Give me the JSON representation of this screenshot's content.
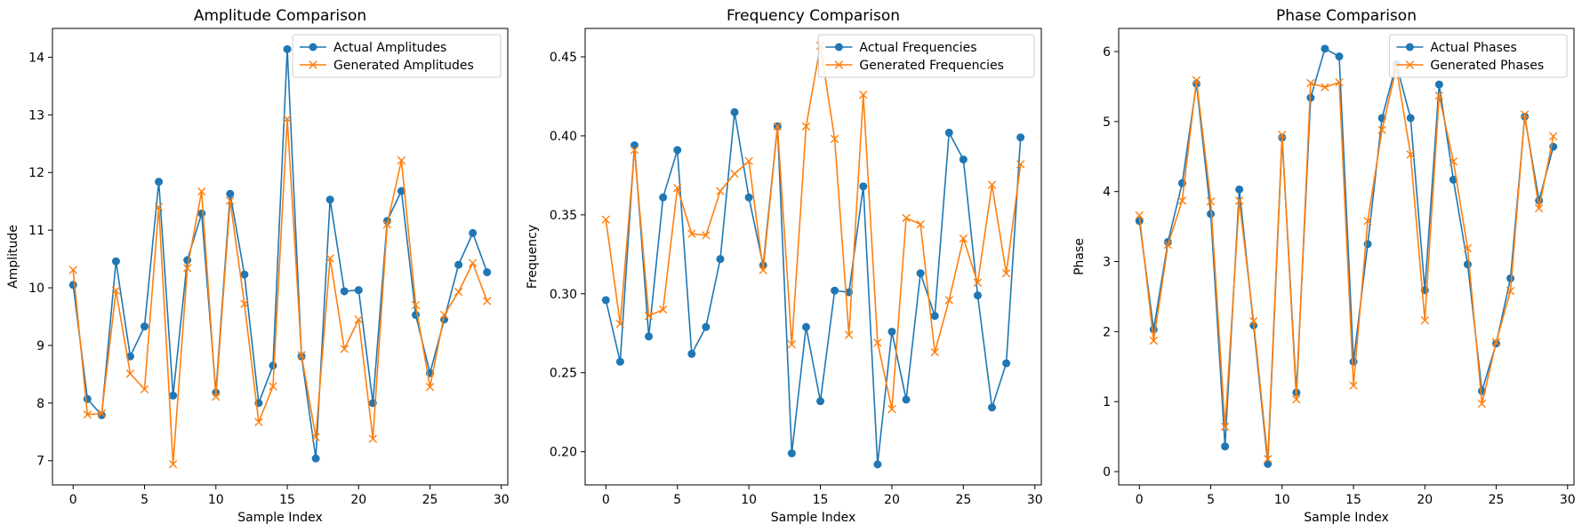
{
  "chart_data": [
    {
      "type": "line",
      "title": "Amplitude Comparison",
      "xlabel": "Sample Index",
      "ylabel": "Amplitude",
      "xlim": [
        -1.45,
        30.45
      ],
      "ylim": [
        6.58,
        14.5
      ],
      "xticks": [
        0,
        5,
        10,
        15,
        20,
        25,
        30
      ],
      "yticks": [
        7,
        8,
        9,
        10,
        11,
        12,
        13,
        14
      ],
      "grid": false,
      "legend": "top-right",
      "x": [
        0,
        1,
        2,
        3,
        4,
        5,
        6,
        7,
        8,
        9,
        10,
        11,
        12,
        13,
        14,
        15,
        16,
        17,
        18,
        19,
        20,
        21,
        22,
        23,
        24,
        25,
        26,
        27,
        28,
        29
      ],
      "series": [
        {
          "name": "Actual Amplitudes",
          "color": "#1f77b4",
          "marker": "circle",
          "values": [
            10.05,
            8.07,
            7.79,
            10.46,
            8.81,
            9.33,
            11.84,
            8.13,
            10.48,
            11.29,
            8.18,
            11.63,
            10.23,
            8.0,
            8.65,
            14.14,
            8.81,
            7.04,
            11.53,
            9.94,
            9.96,
            8.0,
            11.16,
            11.68,
            9.53,
            8.52,
            9.45,
            10.4,
            10.95,
            10.27
          ]
        },
        {
          "name": "Generated Amplitudes",
          "color": "#ff7f0e",
          "marker": "x",
          "values": [
            10.31,
            7.8,
            7.82,
            9.95,
            8.51,
            8.24,
            11.4,
            6.94,
            10.34,
            11.67,
            8.11,
            11.51,
            9.72,
            7.67,
            8.29,
            12.93,
            8.83,
            7.41,
            10.51,
            8.94,
            9.45,
            7.38,
            11.1,
            12.21,
            9.7,
            8.28,
            9.53,
            9.93,
            10.43,
            9.77
          ]
        }
      ]
    },
    {
      "type": "line",
      "title": "Frequency Comparison",
      "xlabel": "Sample Index",
      "ylabel": "Frequency",
      "xlim": [
        -1.45,
        30.45
      ],
      "ylim": [
        0.179,
        0.468
      ],
      "xticks": [
        0,
        5,
        10,
        15,
        20,
        25,
        30
      ],
      "yticks": [
        0.2,
        0.25,
        0.3,
        0.35,
        0.4,
        0.45
      ],
      "ytick_labels": [
        "0.20",
        "0.25",
        "0.30",
        "0.35",
        "0.40",
        "0.45"
      ],
      "grid": false,
      "legend": "top-right",
      "x": [
        0,
        1,
        2,
        3,
        4,
        5,
        6,
        7,
        8,
        9,
        10,
        11,
        12,
        13,
        14,
        15,
        16,
        17,
        18,
        19,
        20,
        21,
        22,
        23,
        24,
        25,
        26,
        27,
        28,
        29
      ],
      "series": [
        {
          "name": "Actual Frequencies",
          "color": "#1f77b4",
          "marker": "circle",
          "values": [
            0.296,
            0.257,
            0.394,
            0.273,
            0.361,
            0.391,
            0.262,
            0.279,
            0.322,
            0.415,
            0.361,
            0.318,
            0.406,
            0.199,
            0.279,
            0.232,
            0.302,
            0.301,
            0.368,
            0.192,
            0.276,
            0.233,
            0.313,
            0.286,
            0.402,
            0.385,
            0.299,
            0.228,
            0.256,
            0.399
          ]
        },
        {
          "name": "Generated Frequencies",
          "color": "#ff7f0e",
          "marker": "x",
          "values": [
            0.347,
            0.281,
            0.391,
            0.286,
            0.29,
            0.367,
            0.338,
            0.337,
            0.365,
            0.376,
            0.384,
            0.315,
            0.406,
            0.268,
            0.406,
            0.457,
            0.398,
            0.274,
            0.426,
            0.269,
            0.227,
            0.348,
            0.344,
            0.263,
            0.296,
            0.335,
            0.307,
            0.369,
            0.313,
            0.382
          ]
        }
      ]
    },
    {
      "type": "line",
      "title": "Phase Comparison",
      "xlabel": "Sample Index",
      "ylabel": "Phase",
      "xlim": [
        -1.45,
        30.45
      ],
      "ylim": [
        -0.19,
        6.33
      ],
      "xticks": [
        0,
        5,
        10,
        15,
        20,
        25,
        30
      ],
      "yticks": [
        0,
        1,
        2,
        3,
        4,
        5,
        6
      ],
      "grid": false,
      "legend": "top-right",
      "x": [
        0,
        1,
        2,
        3,
        4,
        5,
        6,
        7,
        8,
        9,
        10,
        11,
        12,
        13,
        14,
        15,
        16,
        17,
        18,
        19,
        20,
        21,
        22,
        23,
        24,
        25,
        26,
        27,
        28,
        29
      ],
      "series": [
        {
          "name": "Actual Phases",
          "color": "#1f77b4",
          "marker": "circle",
          "values": [
            3.58,
            2.03,
            3.28,
            4.12,
            5.54,
            3.68,
            0.36,
            4.03,
            2.09,
            0.11,
            4.77,
            1.13,
            5.34,
            6.04,
            5.93,
            1.57,
            3.25,
            5.05,
            5.82,
            5.05,
            2.59,
            5.53,
            4.17,
            2.96,
            1.15,
            1.83,
            2.76,
            5.07,
            3.87,
            4.64
          ]
        },
        {
          "name": "Generated Phases",
          "color": "#ff7f0e",
          "marker": "x",
          "values": [
            3.66,
            1.87,
            3.24,
            3.87,
            5.59,
            3.86,
            0.64,
            3.87,
            2.15,
            0.18,
            4.81,
            1.03,
            5.55,
            5.49,
            5.56,
            1.23,
            3.58,
            4.88,
            5.77,
            4.53,
            2.16,
            5.37,
            4.43,
            3.19,
            0.97,
            1.85,
            2.58,
            5.1,
            3.76,
            4.79
          ]
        }
      ]
    }
  ]
}
